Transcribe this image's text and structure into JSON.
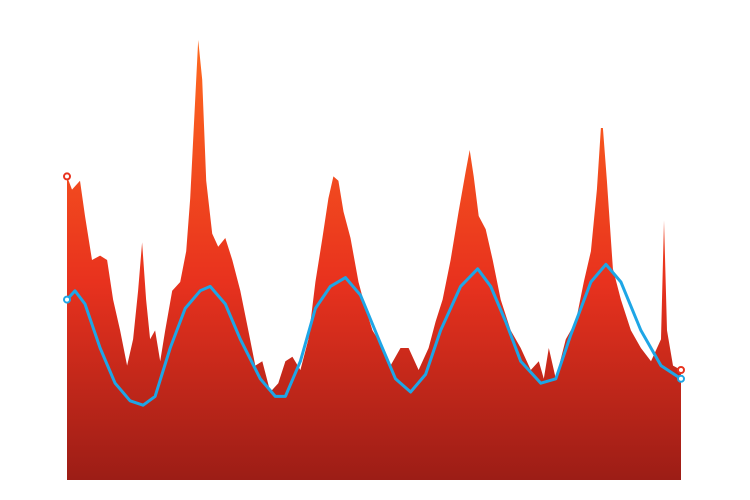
{
  "chart_data": {
    "type": "line",
    "xlim": [
      0,
      613
    ],
    "ylim": [
      0,
      100
    ],
    "series": [
      {
        "color": "#e8321e",
        "fill": true,
        "x": [
          0,
          5,
          13,
          18,
          25,
          33,
          40,
          46,
          53,
          60,
          66,
          71,
          75,
          79,
          83,
          88,
          93,
          98,
          105,
          113,
          119,
          123,
          127,
          131,
          135,
          139,
          145,
          151,
          158,
          165,
          173,
          181,
          188,
          195,
          203,
          211,
          218,
          225,
          233,
          241,
          248,
          255,
          261,
          266,
          271,
          276,
          283,
          291,
          298,
          305,
          313,
          323,
          333,
          341,
          351,
          361,
          368,
          375,
          383,
          391,
          398,
          402,
          406,
          411,
          418,
          425,
          433,
          443,
          453,
          463,
          471,
          476,
          481,
          488,
          498,
          508,
          516,
          523,
          529,
          533,
          535,
          539,
          545,
          553,
          563,
          573,
          583,
          593,
          596,
          599,
          605,
          613
        ],
        "values": [
          69,
          66,
          68,
          60,
          50,
          51,
          50,
          41,
          34,
          26,
          32,
          43,
          54,
          41,
          32,
          34,
          27,
          34,
          43,
          45,
          52,
          64,
          82,
          100,
          91,
          68,
          56,
          53,
          55,
          50,
          43,
          34,
          26,
          27,
          20,
          22,
          27,
          28,
          25,
          32,
          45,
          55,
          64,
          69,
          68,
          61,
          55,
          45,
          39,
          34,
          31,
          26,
          30,
          30,
          25,
          30,
          36,
          41,
          50,
          61,
          70,
          75,
          69,
          60,
          57,
          50,
          41,
          34,
          30,
          25,
          27,
          23,
          30,
          23,
          32,
          36,
          45,
          52,
          66,
          80,
          80,
          68,
          48,
          41,
          34,
          30,
          27,
          32,
          59,
          34,
          26,
          25
        ]
      },
      {
        "color": "#1ea6e6",
        "fill": false,
        "x": [
          0,
          8,
          18,
          33,
          48,
          63,
          76,
          88,
          103,
          118,
          133,
          143,
          158,
          173,
          193,
          208,
          218,
          233,
          248,
          263,
          278,
          293,
          313,
          328,
          343,
          358,
          373,
          393,
          410,
          423,
          438,
          453,
          473,
          488,
          503,
          523,
          538,
          553,
          573,
          593,
          613
        ],
        "values": [
          41,
          43,
          40,
          30,
          22,
          18,
          17,
          19,
          30,
          39,
          43,
          44,
          40,
          32,
          23,
          19,
          19,
          27,
          39,
          44,
          46,
          42,
          31,
          23,
          20,
          24,
          34,
          44,
          48,
          44,
          36,
          27,
          22,
          23,
          33,
          45,
          49,
          45,
          34,
          26,
          23
        ]
      }
    ]
  }
}
